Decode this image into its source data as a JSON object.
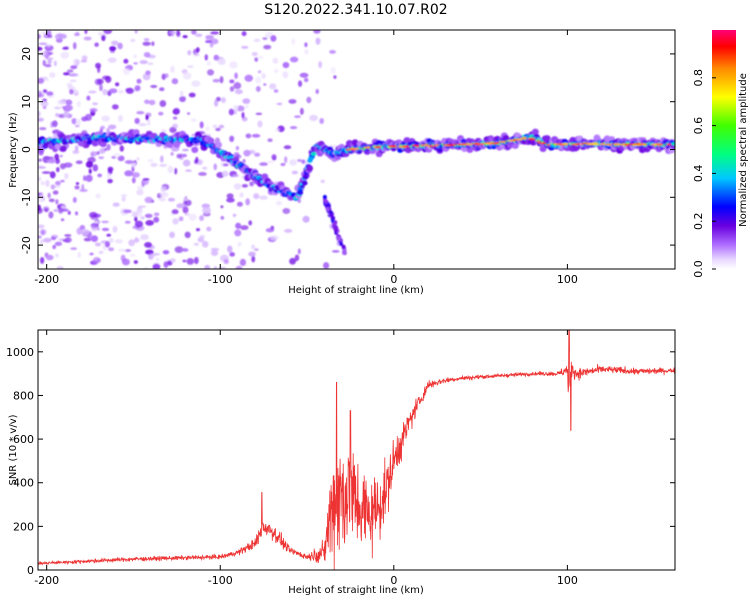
{
  "figure": {
    "title": "S120.2022.341.10.07.R02"
  },
  "colors": {
    "snr_line": "#ee3333",
    "frame": "#000000"
  },
  "chart_data": [
    {
      "type": "heatmap",
      "xlabel": "Height of straight line (km)",
      "ylabel": "Frequency (Hz)",
      "xlim": [
        -205,
        162
      ],
      "ylim": [
        -25,
        25
      ],
      "x_ticks": [
        "-200",
        "-100",
        "0",
        "100"
      ],
      "y_ticks": [
        "-20",
        "-10",
        "0",
        "10",
        "20"
      ],
      "colorbar": {
        "label": "Normalized spectral amplitude",
        "range": [
          0,
          1
        ],
        "ticks": [
          "0.0",
          "0.2",
          "0.4",
          "0.6",
          "0.8"
        ]
      },
      "ridge": {
        "description_points_x_km": [
          -205,
          -170,
          -140,
          -110,
          -90,
          -70,
          -55,
          -45,
          -35,
          -25,
          -10,
          20,
          60,
          80,
          90,
          110,
          162
        ],
        "description_points_freq_hz": [
          1.5,
          2.5,
          2.2,
          2.0,
          -3.0,
          -8.0,
          -10.0,
          1.0,
          -1.0,
          0.0,
          0.5,
          0.8,
          1.3,
          2.5,
          1.0,
          1.2,
          1.0
        ]
      }
    },
    {
      "type": "line",
      "series_name": "SNR",
      "xlabel": "Height of straight line (km)",
      "ylabel": "SNR (10 * v/v)",
      "xlim": [
        -205,
        162
      ],
      "ylim": [
        0,
        1100
      ],
      "x_ticks": [
        "-200",
        "-100",
        "0",
        "100"
      ],
      "y_ticks": [
        "0",
        "200",
        "400",
        "600",
        "800",
        "1000"
      ],
      "trend_x_km": [
        -205,
        -150,
        -100,
        -90,
        -80,
        -75,
        -70,
        -60,
        -50,
        -40,
        -38,
        -35,
        -30,
        -25,
        -20,
        -15,
        -10,
        -5,
        0,
        10,
        20,
        30,
        40,
        60,
        80,
        95,
        100,
        101,
        102,
        105,
        120,
        140,
        162
      ],
      "trend_snr": [
        30,
        50,
        60,
        80,
        120,
        200,
        180,
        90,
        60,
        80,
        200,
        300,
        350,
        350,
        300,
        250,
        280,
        350,
        500,
        700,
        850,
        870,
        880,
        890,
        900,
        900,
        920,
        700,
        930,
        900,
        920,
        910,
        915
      ],
      "noise_amplitude": [
        8,
        12,
        12,
        15,
        30,
        60,
        50,
        20,
        15,
        60,
        200,
        300,
        350,
        300,
        250,
        220,
        200,
        160,
        120,
        60,
        25,
        15,
        12,
        10,
        10,
        12,
        40,
        150,
        60,
        30,
        20,
        18,
        15
      ],
      "spikes": [
        {
          "x": -76,
          "snr": 355
        },
        {
          "x": -33,
          "snr": 860
        },
        {
          "x": -25,
          "snr": 730
        },
        {
          "x": 101,
          "snr": 1100
        },
        {
          "x": 102,
          "snr": 640
        }
      ]
    }
  ]
}
